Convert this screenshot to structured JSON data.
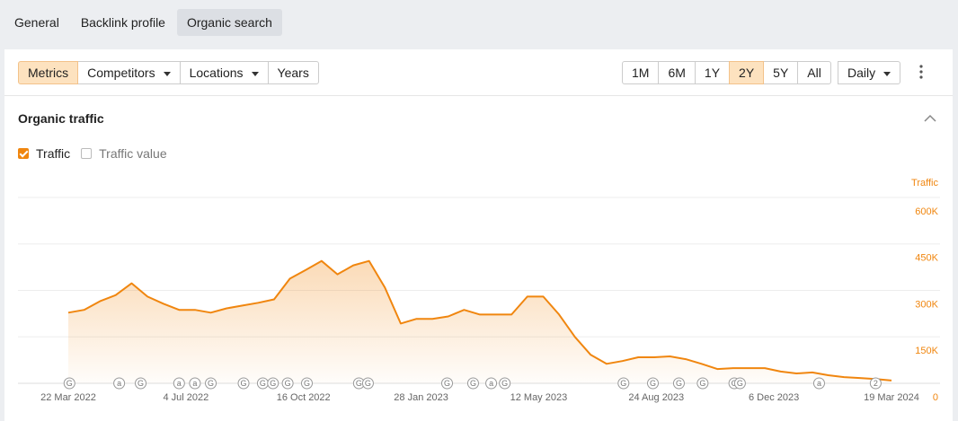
{
  "tabs": [
    "General",
    "Backlink profile",
    "Organic search"
  ],
  "toolbar_left": [
    "Metrics",
    "Competitors",
    "Locations",
    "Years"
  ],
  "ranges": [
    "1M",
    "6M",
    "1Y",
    "2Y",
    "5Y",
    "All"
  ],
  "interval": "Daily",
  "section_title": "Organic traffic",
  "checkboxes": [
    {
      "label": "Traffic",
      "checked": true
    },
    {
      "label": "Traffic value",
      "checked": false
    }
  ],
  "chart_data": {
    "type": "line",
    "y_axis_label": "Traffic",
    "x": [
      "22 Mar 2022",
      "5 Apr 2022",
      "19 Apr 2022",
      "3 May 2022",
      "17 May 2022",
      "31 May 2022",
      "14 Jun 2022",
      "28 Jun 2022",
      "12 Jul 2022",
      "26 Jul 2022",
      "9 Aug 2022",
      "23 Aug 2022",
      "6 Sep 2022",
      "20 Sep 2022",
      "4 Oct 2022",
      "18 Oct 2022",
      "1 Nov 2022",
      "15 Nov 2022",
      "29 Nov 2022",
      "13 Dec 2022",
      "27 Dec 2022",
      "10 Jan 2023",
      "24 Jan 2023",
      "7 Feb 2023",
      "21 Feb 2023",
      "7 Mar 2023",
      "21 Mar 2023",
      "4 Apr 2023",
      "18 Apr 2023",
      "2 May 2023",
      "16 May 2023",
      "30 May 2023",
      "13 Jun 2023",
      "27 Jun 2023",
      "11 Jul 2023",
      "25 Jul 2023",
      "8 Aug 2023",
      "22 Aug 2023",
      "5 Sep 2023",
      "19 Sep 2023",
      "3 Oct 2023",
      "17 Oct 2023",
      "31 Oct 2023",
      "14 Nov 2023",
      "28 Nov 2023",
      "12 Dec 2023",
      "26 Dec 2023",
      "9 Jan 2024",
      "23 Jan 2024",
      "6 Feb 2024",
      "20 Feb 2024",
      "5 Mar 2024",
      "19 Mar 2024"
    ],
    "series": [
      {
        "name": "Traffic",
        "color": "#f0860f",
        "values": [
          228000,
          237000,
          265000,
          285000,
          323000,
          280000,
          257000,
          237000,
          237000,
          228000,
          242000,
          251000,
          260000,
          271000,
          338000,
          366000,
          395000,
          352000,
          381000,
          395000,
          309000,
          193000,
          208000,
          208000,
          216000,
          237000,
          222000,
          222000,
          222000,
          280000,
          280000,
          222000,
          150000,
          92000,
          63000,
          72000,
          84000,
          84000,
          87000,
          78000,
          63000,
          46000,
          49000,
          49000,
          49000,
          38000,
          32000,
          35000,
          26000,
          20000,
          17000,
          14000,
          9000
        ]
      }
    ],
    "xlim": [
      "22 Mar 2022",
      "19 Mar 2024"
    ],
    "xticks": [
      "22 Mar 2022",
      "4 Jul 2022",
      "16 Oct 2022",
      "28 Jan 2023",
      "12 May 2023",
      "24 Aug 2023",
      "6 Dec 2023",
      "19 Mar 2024"
    ],
    "ylim": [
      0,
      600000
    ],
    "yticks": [
      0,
      {
        "value": 150000,
        "label": "150K"
      },
      {
        "value": 300000,
        "label": "300K"
      },
      {
        "value": 450000,
        "label": "450K"
      },
      {
        "value": 600000,
        "label": "600K"
      }
    ],
    "grid": true,
    "markers": [
      {
        "x": "23 Mar 2022",
        "label": "G"
      },
      {
        "x": "6 May 2022",
        "label": "a"
      },
      {
        "x": "25 May 2022",
        "label": "G"
      },
      {
        "x": "28 Jun 2022",
        "label": "a"
      },
      {
        "x": "12 Jul 2022",
        "label": "a"
      },
      {
        "x": "26 Jul 2022",
        "label": "G"
      },
      {
        "x": "24 Aug 2022",
        "label": "G"
      },
      {
        "x": "10 Sep 2022",
        "label": "G"
      },
      {
        "x": "19 Sep 2022",
        "label": "G"
      },
      {
        "x": "2 Oct 2022",
        "label": "G"
      },
      {
        "x": "19 Oct 2022",
        "label": "G"
      },
      {
        "x": "4 Dec 2022",
        "label": "G"
      },
      {
        "x": "12 Dec 2022",
        "label": "G"
      },
      {
        "x": "20 Feb 2023",
        "label": "G"
      },
      {
        "x": "15 Mar 2023",
        "label": "G"
      },
      {
        "x": "31 Mar 2023",
        "label": "a"
      },
      {
        "x": "12 Apr 2023",
        "label": "G"
      },
      {
        "x": "26 Jul 2023",
        "label": "G"
      },
      {
        "x": "21 Aug 2023",
        "label": "G"
      },
      {
        "x": "13 Sep 2023",
        "label": "G"
      },
      {
        "x": "4 Oct 2023",
        "label": "G"
      },
      {
        "x": "1 Nov 2023",
        "label": "G"
      },
      {
        "x": "6 Nov 2023",
        "label": "G"
      },
      {
        "x": "15 Jan 2024",
        "label": "a"
      },
      {
        "x": "5 Mar 2024",
        "label": "2"
      }
    ]
  }
}
